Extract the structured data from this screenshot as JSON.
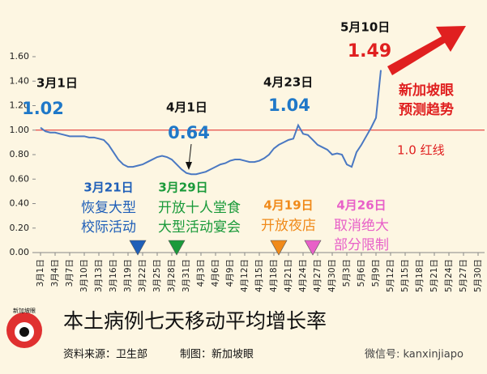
{
  "chart_data": {
    "type": "line",
    "title": "本土病例七天移动平均增长率",
    "source": "资料来源：卫生部",
    "maker": "制图：新加坡眼",
    "watermark": "微信号: kanxinjiapo",
    "logo_text": "新加坡眼",
    "categories": [
      "3月1日",
      null,
      null,
      "3月4日",
      null,
      null,
      "3月7日",
      null,
      null,
      "3月10日",
      null,
      null,
      "3月13日",
      null,
      null,
      "3月16日",
      null,
      null,
      "3月19日",
      null,
      null,
      "3月22日",
      null,
      null,
      "3月25日",
      null,
      null,
      "3月28日",
      null,
      null,
      "3月31日",
      null,
      null,
      "4月3日",
      null,
      null,
      "4月6日",
      null,
      null,
      "4月9日",
      null,
      null,
      "4月12日",
      null,
      null,
      "4月15日",
      null,
      null,
      "4月18日",
      null,
      null,
      "4月21日",
      null,
      null,
      "4月24日",
      null,
      null,
      "4月27日",
      null,
      null,
      "4月30日",
      null,
      null,
      "5月3日",
      null,
      null,
      "5月6日",
      null,
      null,
      "5月9日",
      null,
      null,
      "5月12日",
      null,
      null,
      "5月15日",
      null,
      null,
      "5月18日",
      null,
      null,
      "5月21日",
      null,
      null,
      "5月24日",
      null,
      null,
      "5月27日",
      null,
      null,
      "5月30日"
    ],
    "values": [
      1.02,
      0.99,
      0.98,
      0.98,
      0.97,
      0.96,
      0.95,
      0.95,
      0.95,
      0.95,
      0.94,
      0.94,
      0.93,
      0.92,
      0.88,
      0.82,
      0.76,
      0.72,
      0.7,
      0.7,
      0.71,
      0.72,
      0.74,
      0.76,
      0.78,
      0.79,
      0.78,
      0.76,
      0.72,
      0.68,
      0.65,
      0.64,
      0.64,
      0.65,
      0.66,
      0.68,
      0.7,
      0.72,
      0.73,
      0.75,
      0.76,
      0.76,
      0.75,
      0.74,
      0.74,
      0.75,
      0.77,
      0.8,
      0.85,
      0.88,
      0.9,
      0.92,
      0.93,
      1.04,
      0.97,
      0.96,
      0.92,
      0.88,
      0.86,
      0.84,
      0.8,
      0.81,
      0.8,
      0.72,
      0.7,
      0.82,
      0.88,
      0.95,
      1.02,
      1.1,
      1.49,
      null,
      null,
      null,
      null,
      null,
      null,
      null,
      null,
      null,
      null,
      null,
      null,
      null,
      null,
      null,
      null,
      null,
      null,
      null,
      null
    ],
    "color": "#4a78c2",
    "ylim": [
      0,
      1.6
    ],
    "yticks": [
      {
        "value": 0,
        "label": "0.00"
      },
      {
        "value": 0.2,
        "label": "0.20"
      },
      {
        "value": 0.4,
        "label": "0.40"
      },
      {
        "value": 0.6,
        "label": "0.60"
      },
      {
        "value": 0.8,
        "label": "0.80"
      },
      {
        "value": 1.0,
        "label": "1.00"
      },
      {
        "value": 1.2,
        "label": "1.20"
      },
      {
        "value": 1.4,
        "label": "1.40"
      },
      {
        "value": 1.6,
        "label": "1.60"
      }
    ],
    "reference_line": {
      "value": 1.0,
      "label": "1.0 红线",
      "color": "#e02020"
    },
    "point_annotations": [
      {
        "date": "3月1日",
        "value": 1.02
      },
      {
        "date": "4月1日",
        "value": 0.64
      },
      {
        "date": "4月23日",
        "value": 1.04
      },
      {
        "date": "5月10日",
        "value": 1.49
      }
    ],
    "trend_label": [
      "新加坡眼",
      "预测趋势"
    ],
    "events": [
      {
        "date": "3月21日",
        "lines": [
          "恢复大型",
          "校际活动"
        ],
        "color": "#1f5fb8",
        "text_color": "#1f5fb8"
      },
      {
        "date": "3月29日",
        "lines": [
          "开放十人堂食",
          "大型活动宴会"
        ],
        "color": "#1a9a3a",
        "text_color": "#1a9a3a"
      },
      {
        "date": "4月19日",
        "lines": [
          "开放夜店"
        ],
        "color": "#f08a1a",
        "text_color": "#f08a1a"
      },
      {
        "date": "4月26日",
        "lines": [
          "取消绝大",
          "部分限制"
        ],
        "color": "#e860c8",
        "text_color": "#e860c8"
      }
    ]
  }
}
